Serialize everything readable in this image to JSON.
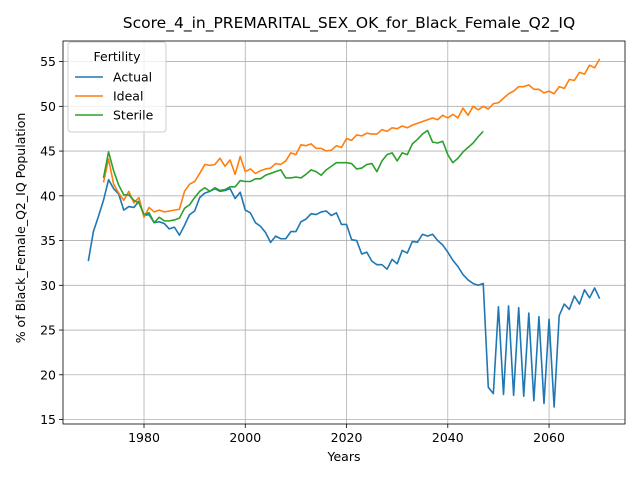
{
  "chart_data": {
    "type": "line",
    "title": "Score_4_in_PREMARITAL_SEX_OK_for_Black_Female_Q2_IQ",
    "xlabel": "Years",
    "ylabel": "% of Black_Female_Q2_IQ Population",
    "xlim": [
      1964,
      2075
    ],
    "ylim": [
      14.5,
      57.3
    ],
    "xticks": [
      1980,
      2000,
      2020,
      2040,
      2060
    ],
    "yticks": [
      15,
      20,
      25,
      30,
      35,
      40,
      45,
      50,
      55
    ],
    "grid": true,
    "legend": {
      "title": "Fertility",
      "placement": "upper-left"
    },
    "series": [
      {
        "name": "Actual",
        "color": "#1f77b4",
        "x": [
          1969,
          1970,
          1971,
          1972,
          1973,
          1974,
          1975,
          1976,
          1977,
          1978,
          1979,
          1980,
          1981,
          1982,
          1983,
          1984,
          1985,
          1986,
          1987,
          1988,
          1989,
          1990,
          1991,
          1992,
          1993,
          1994,
          1995,
          1996,
          1997,
          1998,
          1999,
          2000,
          2001,
          2002,
          2003,
          2004,
          2005,
          2006,
          2007,
          2008,
          2009,
          2010,
          2011,
          2012,
          2013,
          2014,
          2015,
          2016,
          2017,
          2018,
          2019,
          2020,
          2021,
          2022,
          2023,
          2024,
          2025,
          2026,
          2027,
          2028,
          2029,
          2030,
          2031,
          2032,
          2033,
          2034,
          2035,
          2036,
          2037,
          2038,
          2039,
          2040,
          2041,
          2042,
          2043,
          2044,
          2045,
          2046,
          2047,
          2048,
          2049,
          2050,
          2051,
          2052,
          2053,
          2054,
          2055,
          2056,
          2057,
          2058,
          2059,
          2060,
          2061,
          2062,
          2063,
          2064,
          2065,
          2066,
          2067,
          2068,
          2069,
          2070
        ],
        "values": [
          32.7,
          36.0,
          37.7,
          39.5,
          41.8,
          40.8,
          40.2,
          38.4,
          38.8,
          38.7,
          39.4,
          37.8,
          37.9,
          37.0,
          37.1,
          36.9,
          36.3,
          36.5,
          35.6,
          36.7,
          37.9,
          38.3,
          39.8,
          40.3,
          40.5,
          40.8,
          40.5,
          40.6,
          40.8,
          39.7,
          40.4,
          38.4,
          38.1,
          37.0,
          36.6,
          35.9,
          34.8,
          35.5,
          35.2,
          35.2,
          36.0,
          36.0,
          37.1,
          37.4,
          38.0,
          37.9,
          38.2,
          38.3,
          37.8,
          38.1,
          36.8,
          36.8,
          35.1,
          35.0,
          33.5,
          33.7,
          32.7,
          32.3,
          32.3,
          31.8,
          32.9,
          32.4,
          33.9,
          33.6,
          34.9,
          34.8,
          35.7,
          35.5,
          35.7,
          35.0,
          34.5,
          33.7,
          32.8,
          32.1,
          31.2,
          30.6,
          30.2,
          30.0,
          30.2,
          18.6,
          17.9,
          27.6,
          17.8,
          27.7,
          17.7,
          27.5,
          17.6,
          26.9,
          17.1,
          26.5,
          16.8,
          26.2,
          16.4,
          26.6,
          27.9,
          27.3,
          28.8,
          27.9,
          29.5,
          28.6,
          29.7,
          28.5
        ]
      },
      {
        "name": "Ideal",
        "color": "#ff7f0e",
        "x": [
          1972,
          1973,
          1974,
          1975,
          1976,
          1977,
          1978,
          1979,
          1980,
          1981,
          1982,
          1983,
          1984,
          1985,
          1986,
          1987,
          1988,
          1989,
          1990,
          1991,
          1992,
          1993,
          1994,
          1995,
          1996,
          1997,
          1998,
          1999,
          2000,
          2001,
          2002,
          2003,
          2004,
          2005,
          2006,
          2007,
          2008,
          2009,
          2010,
          2011,
          2012,
          2013,
          2014,
          2015,
          2016,
          2017,
          2018,
          2019,
          2020,
          2021,
          2022,
          2023,
          2024,
          2025,
          2026,
          2027,
          2028,
          2029,
          2030,
          2031,
          2032,
          2033,
          2034,
          2035,
          2036,
          2037,
          2038,
          2039,
          2040,
          2041,
          2042,
          2043,
          2044,
          2045,
          2046,
          2047,
          2048,
          2049,
          2050,
          2051,
          2052,
          2053,
          2054,
          2055,
          2056,
          2057,
          2058,
          2059,
          2060,
          2061,
          2062,
          2063,
          2064,
          2065,
          2066,
          2067,
          2068,
          2069,
          2070
        ],
        "values": [
          41.5,
          44.1,
          41.3,
          40.3,
          39.5,
          40.5,
          39.2,
          39.8,
          37.6,
          38.7,
          38.2,
          38.4,
          38.2,
          38.3,
          38.4,
          38.5,
          40.5,
          41.3,
          41.6,
          42.5,
          43.5,
          43.4,
          43.5,
          44.2,
          43.3,
          44.0,
          42.4,
          44.4,
          42.7,
          43.0,
          42.5,
          42.8,
          43.0,
          43.1,
          43.6,
          43.5,
          43.9,
          44.8,
          44.6,
          45.7,
          45.6,
          45.8,
          45.3,
          45.3,
          45.0,
          45.1,
          45.6,
          45.4,
          46.4,
          46.2,
          46.8,
          46.7,
          47.0,
          46.9,
          46.9,
          47.4,
          47.2,
          47.6,
          47.5,
          47.8,
          47.6,
          47.9,
          48.1,
          48.3,
          48.5,
          48.7,
          48.5,
          49.0,
          48.7,
          49.1,
          48.7,
          49.8,
          49.0,
          50.0,
          49.6,
          50.0,
          49.7,
          50.3,
          50.4,
          50.9,
          51.4,
          51.7,
          52.2,
          52.2,
          52.4,
          51.9,
          51.9,
          51.5,
          51.7,
          51.4,
          52.2,
          52.0,
          53.0,
          52.9,
          53.8,
          53.6,
          54.6,
          54.3,
          55.3
        ]
      },
      {
        "name": "Sterile",
        "color": "#2ca02c",
        "x": [
          1972,
          1973,
          1974,
          1975,
          1976,
          1977,
          1978,
          1979,
          1980,
          1981,
          1982,
          1983,
          1984,
          1985,
          1986,
          1987,
          1988,
          1989,
          1990,
          1991,
          1992,
          1993,
          1994,
          1995,
          1996,
          1997,
          1998,
          1999,
          2000,
          2001,
          2002,
          2003,
          2004,
          2005,
          2006,
          2007,
          2008,
          2009,
          2010,
          2011,
          2012,
          2013,
          2014,
          2015,
          2016,
          2017,
          2018,
          2019,
          2020,
          2021,
          2022,
          2023,
          2024,
          2025,
          2026,
          2027,
          2028,
          2029,
          2030,
          2031,
          2032,
          2033,
          2034,
          2035,
          2036,
          2037,
          2038,
          2039,
          2040,
          2041,
          2042,
          2043,
          2044,
          2045,
          2046,
          2047
        ],
        "values": [
          42.0,
          44.9,
          42.8,
          41.2,
          40.1,
          40.1,
          39.5,
          39.2,
          37.9,
          38.1,
          37.0,
          37.6,
          37.2,
          37.2,
          37.3,
          37.5,
          38.6,
          39.0,
          39.8,
          40.5,
          40.9,
          40.5,
          40.9,
          40.6,
          40.7,
          41.0,
          41.0,
          41.7,
          41.6,
          41.6,
          41.9,
          41.9,
          42.3,
          42.5,
          42.7,
          42.9,
          42.0,
          42.0,
          42.1,
          42.0,
          42.4,
          42.9,
          42.7,
          42.3,
          42.9,
          43.3,
          43.7,
          43.7,
          43.7,
          43.6,
          43.0,
          43.1,
          43.5,
          43.6,
          42.7,
          43.9,
          44.6,
          44.8,
          43.9,
          44.8,
          44.6,
          45.8,
          46.3,
          46.9,
          47.3,
          46.0,
          45.9,
          46.1,
          44.6,
          43.7,
          44.2,
          44.9,
          45.4,
          45.9,
          46.6,
          47.2
        ]
      }
    ]
  }
}
